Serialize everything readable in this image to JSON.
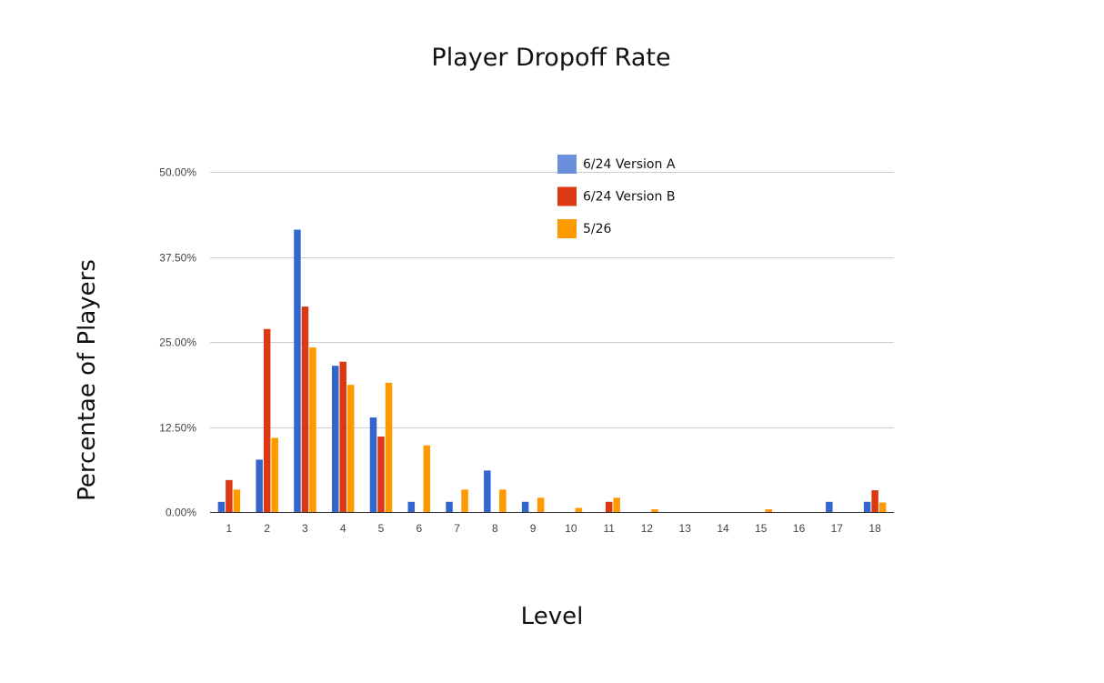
{
  "chart_data": {
    "type": "bar",
    "title": "Player Dropoff Rate",
    "xlabel": "Level",
    "ylabel": "Percentae of Players",
    "categories": [
      "1",
      "2",
      "3",
      "4",
      "5",
      "6",
      "7",
      "8",
      "9",
      "10",
      "11",
      "12",
      "13",
      "14",
      "15",
      "16",
      "17",
      "18"
    ],
    "y_ticks": [
      "0.00%",
      "12.50%",
      "25.00%",
      "37.50%",
      "50.00%"
    ],
    "ylim": [
      0,
      50
    ],
    "grid": true,
    "legend_position": "top-right",
    "series": [
      {
        "name": "6/24 Version A",
        "color": "#3366cc",
        "legend_color": "#6b8fdb",
        "values": [
          1.5,
          7.7,
          41.5,
          21.5,
          13.9,
          1.5,
          1.5,
          6.1,
          1.5,
          0,
          0,
          0,
          0,
          0,
          0,
          0,
          1.5,
          1.5
        ]
      },
      {
        "name": "6/24 Version B",
        "color": "#dc3912",
        "legend_color": "#dc3912",
        "values": [
          4.7,
          26.9,
          30.2,
          22.1,
          11.1,
          0,
          0,
          0,
          0,
          0,
          1.5,
          0,
          0,
          0,
          0,
          0,
          0,
          3.2
        ]
      },
      {
        "name": "5/26",
        "color": "#ff9900",
        "legend_color": "#ff9900",
        "values": [
          3.3,
          10.9,
          24.2,
          18.7,
          19.0,
          9.8,
          3.3,
          3.3,
          2.1,
          0.6,
          2.1,
          0.4,
          0,
          0,
          0.4,
          0,
          0,
          1.4
        ]
      }
    ]
  }
}
